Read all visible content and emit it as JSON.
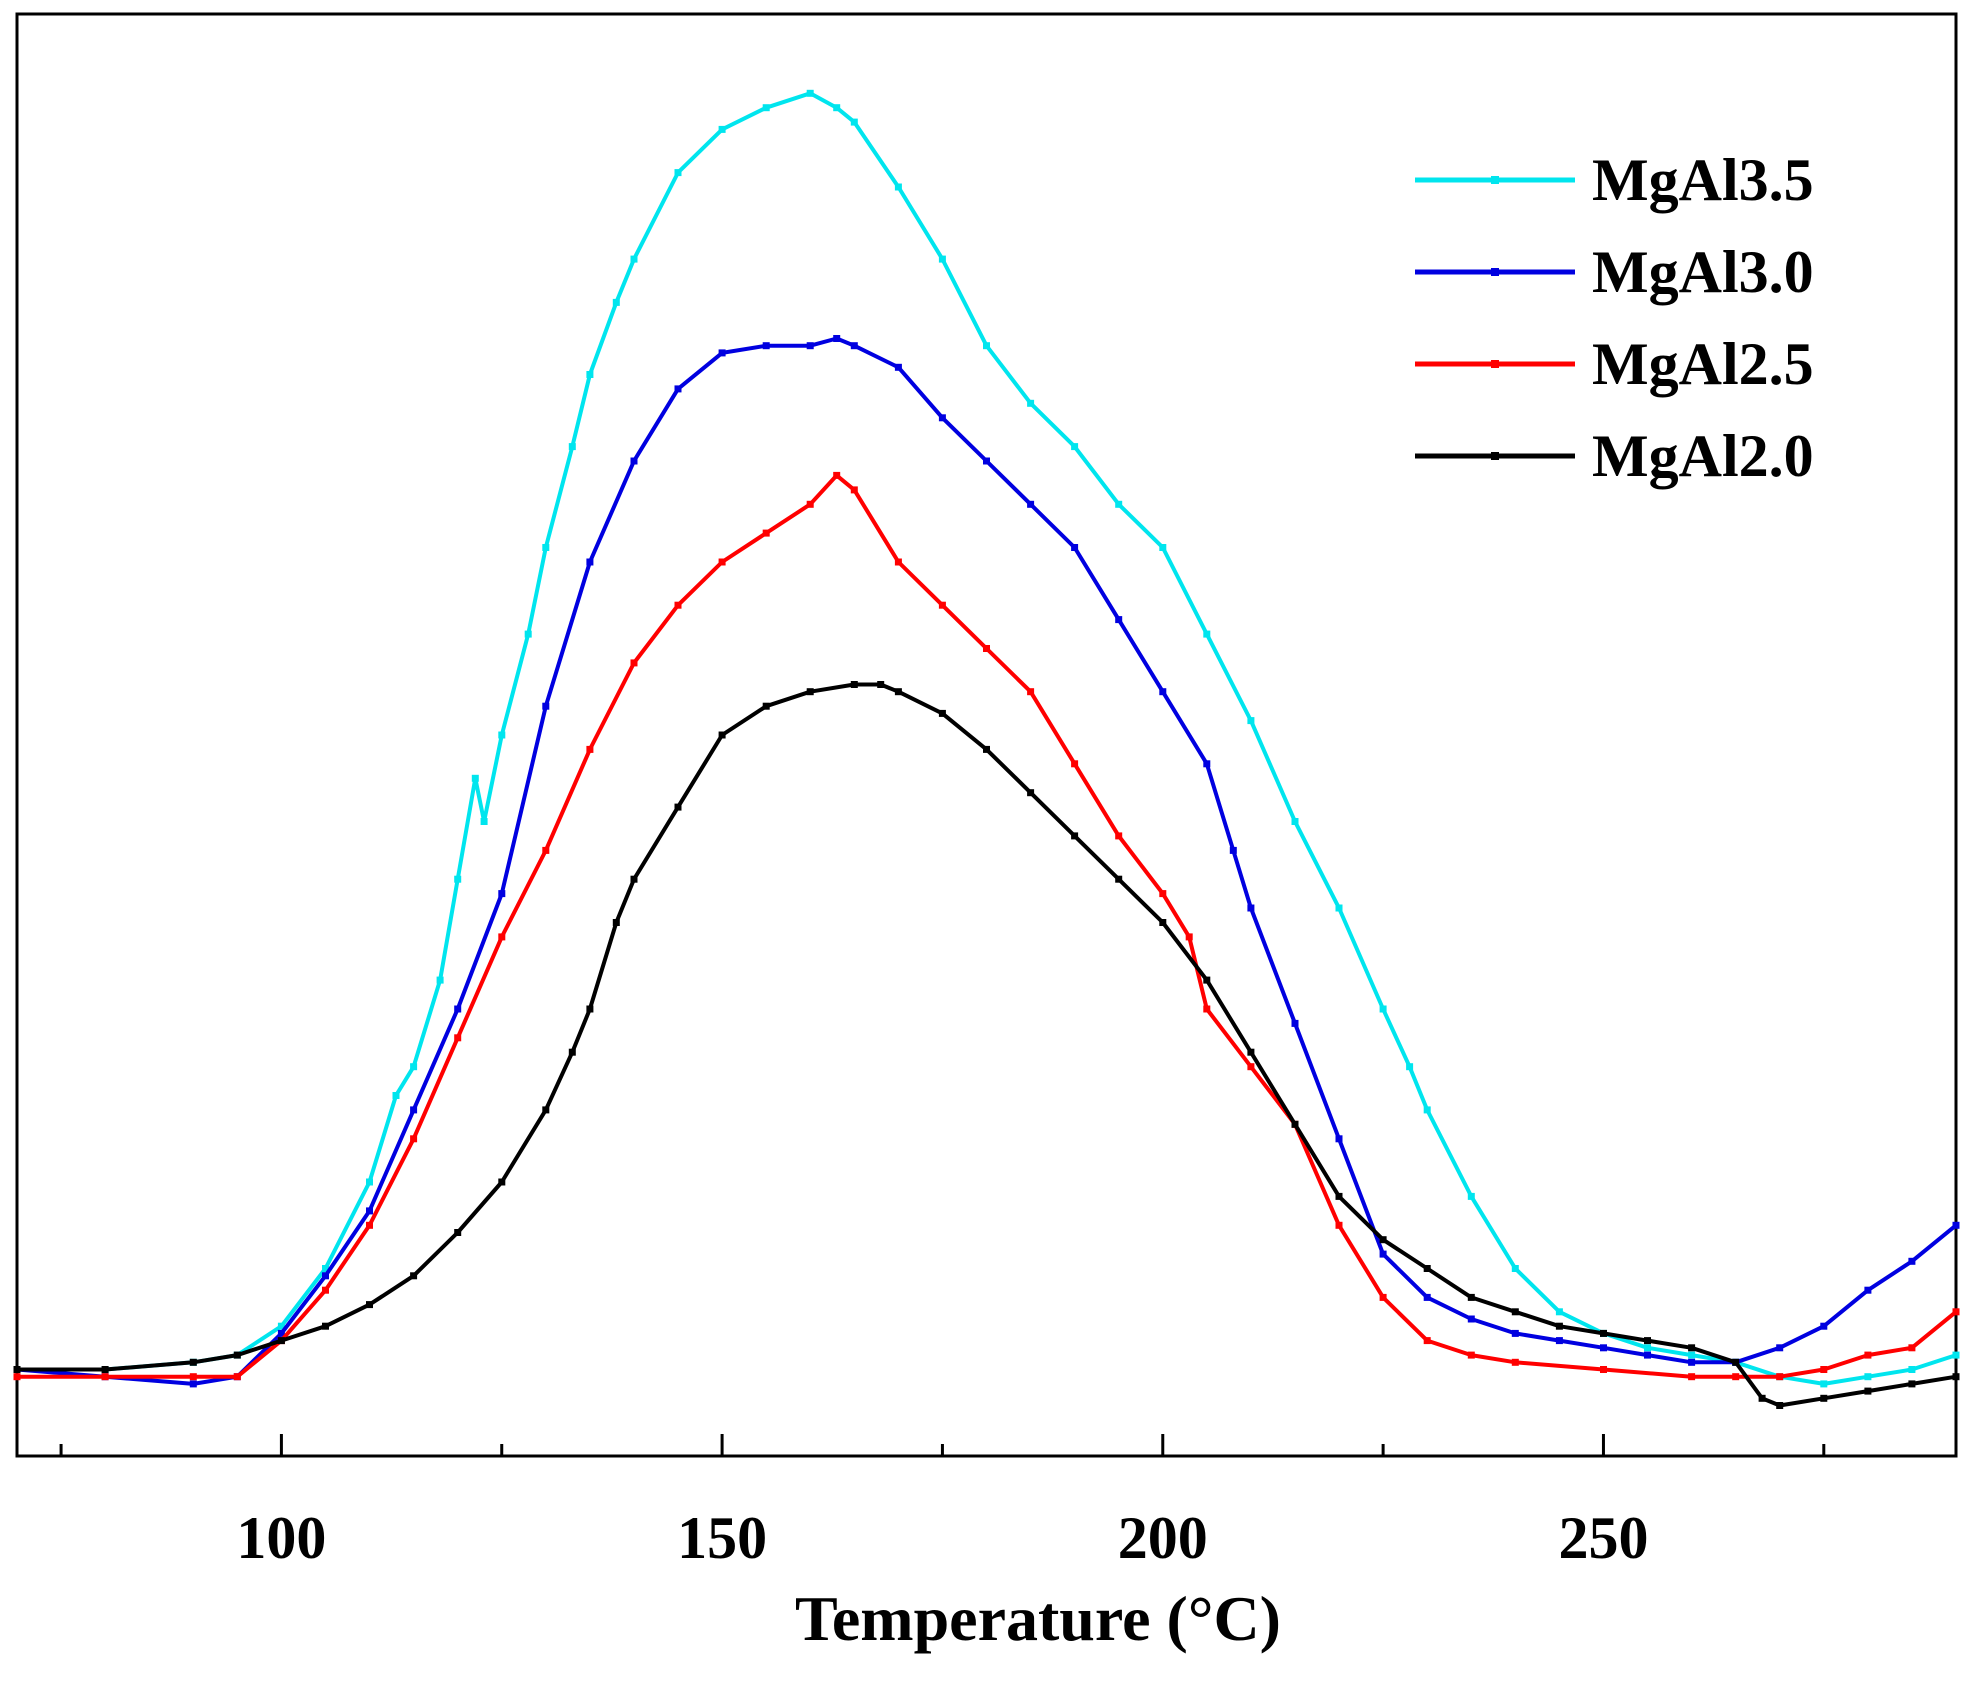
{
  "chart_data": {
    "type": "line",
    "title": "",
    "xlabel": "Temperature (°C)",
    "ylabel": "",
    "xlim": [
      70,
      290
    ],
    "ylim": [
      0,
      100
    ],
    "xticks": [
      100,
      150,
      200,
      250
    ],
    "xtick_labels": [
      "100",
      "150",
      "200",
      "250"
    ],
    "minor_xticks": [
      75,
      125,
      175,
      225,
      275
    ],
    "y_ticks_shown": false,
    "grid": false,
    "legend_position": "top-right",
    "series": [
      {
        "name": "MgAl3.5",
        "color": "#00e5ee",
        "x": [
          70,
          80,
          90,
          95,
          100,
          105,
          110,
          113,
          115,
          118,
          120,
          122,
          123,
          125,
          128,
          130,
          133,
          135,
          138,
          140,
          145,
          150,
          155,
          160,
          163,
          165,
          170,
          175,
          180,
          185,
          190,
          195,
          200,
          205,
          210,
          215,
          220,
          225,
          228,
          230,
          235,
          240,
          245,
          250,
          255,
          260,
          265,
          270,
          275,
          280,
          285,
          290
        ],
        "y": [
          6.0,
          6.0,
          6.5,
          7.0,
          9.0,
          13.0,
          19.0,
          25.0,
          27.0,
          33.0,
          40.0,
          47.0,
          44.0,
          50.0,
          57.0,
          63.0,
          70.0,
          75.0,
          80.0,
          83.0,
          89.0,
          92.0,
          93.5,
          94.5,
          93.5,
          92.5,
          88.0,
          83.0,
          77.0,
          73.0,
          70.0,
          66.0,
          63.0,
          57.0,
          51.0,
          44.0,
          38.0,
          31.0,
          27.0,
          24.0,
          18.0,
          13.0,
          10.0,
          8.5,
          7.5,
          7.0,
          6.5,
          5.5,
          5.0,
          5.5,
          6.0,
          7.0
        ]
      },
      {
        "name": "MgAl3.0",
        "color": "#0000e0",
        "x": [
          70,
          80,
          90,
          95,
          100,
          105,
          110,
          115,
          120,
          125,
          130,
          135,
          140,
          145,
          150,
          155,
          160,
          163,
          165,
          170,
          175,
          180,
          185,
          190,
          195,
          200,
          205,
          208,
          210,
          215,
          220,
          225,
          230,
          235,
          240,
          245,
          250,
          255,
          260,
          265,
          270,
          275,
          280,
          285,
          290
        ],
        "y": [
          6.0,
          5.5,
          5.0,
          5.5,
          8.5,
          12.5,
          17.0,
          24.0,
          31.0,
          39.0,
          52.0,
          62.0,
          69.0,
          74.0,
          76.5,
          77.0,
          77.0,
          77.5,
          77.0,
          75.5,
          72.0,
          69.0,
          66.0,
          63.0,
          58.0,
          53.0,
          48.0,
          42.0,
          38.0,
          30.0,
          22.0,
          14.0,
          11.0,
          9.5,
          8.5,
          8.0,
          7.5,
          7.0,
          6.5,
          6.5,
          7.5,
          9.0,
          11.5,
          13.5,
          16.0
        ]
      },
      {
        "name": "MgAl2.5",
        "color": "#ff0000",
        "x": [
          70,
          80,
          90,
          95,
          100,
          105,
          110,
          115,
          120,
          125,
          130,
          135,
          140,
          145,
          150,
          155,
          160,
          163,
          165,
          170,
          175,
          180,
          185,
          190,
          195,
          200,
          203,
          205,
          210,
          215,
          220,
          225,
          230,
          235,
          240,
          250,
          260,
          265,
          270,
          275,
          280,
          285,
          290
        ],
        "y": [
          5.5,
          5.5,
          5.5,
          5.5,
          8.0,
          11.5,
          16.0,
          22.0,
          29.0,
          36.0,
          42.0,
          49.0,
          55.0,
          59.0,
          62.0,
          64.0,
          66.0,
          68.0,
          67.0,
          62.0,
          59.0,
          56.0,
          53.0,
          48.0,
          43.0,
          39.0,
          36.0,
          31.0,
          27.0,
          23.0,
          16.0,
          11.0,
          8.0,
          7.0,
          6.5,
          6.0,
          5.5,
          5.5,
          5.5,
          6.0,
          7.0,
          7.5,
          10.0
        ]
      },
      {
        "name": "MgAl2.0",
        "color": "#000000",
        "x": [
          70,
          80,
          90,
          95,
          100,
          105,
          110,
          115,
          120,
          125,
          130,
          133,
          135,
          138,
          140,
          145,
          150,
          155,
          160,
          165,
          168,
          170,
          175,
          180,
          185,
          190,
          195,
          200,
          205,
          210,
          215,
          220,
          225,
          230,
          235,
          240,
          245,
          250,
          255,
          260,
          265,
          268,
          270,
          275,
          280,
          285,
          290
        ],
        "y": [
          6.0,
          6.0,
          6.5,
          7.0,
          8.0,
          9.0,
          10.5,
          12.5,
          15.5,
          19.0,
          24.0,
          28.0,
          31.0,
          37.0,
          40.0,
          45.0,
          50.0,
          52.0,
          53.0,
          53.5,
          53.5,
          53.0,
          51.5,
          49.0,
          46.0,
          43.0,
          40.0,
          37.0,
          33.0,
          28.0,
          23.0,
          18.0,
          15.0,
          13.0,
          11.0,
          10.0,
          9.0,
          8.5,
          8.0,
          7.5,
          6.5,
          4.0,
          3.5,
          4.0,
          4.5,
          5.0,
          5.5
        ]
      }
    ]
  }
}
